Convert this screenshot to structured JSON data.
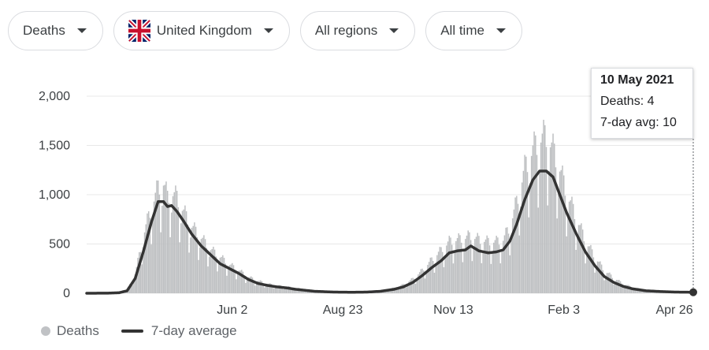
{
  "filters": {
    "metric": "Deaths",
    "country": "United Kingdom",
    "region": "All regions",
    "time": "All time"
  },
  "tooltip": {
    "date": "10 May 2021",
    "deaths_label": "Deaths: 4",
    "avg_label": "7-day avg: 10"
  },
  "legend": {
    "bars": "Deaths",
    "line": "7-day average"
  },
  "colors": {
    "bars": "#bdbfc1",
    "line": "#333333",
    "grid": "#e8e8e8"
  },
  "chart_data": {
    "type": "bar",
    "ylim": [
      0,
      2000
    ],
    "yticks": [
      {
        "value": 0,
        "label": "0"
      },
      {
        "value": 500,
        "label": "500"
      },
      {
        "value": 1000,
        "label": "1,000"
      },
      {
        "value": 1500,
        "label": "1,500"
      },
      {
        "value": 2000,
        "label": "2,000"
      }
    ],
    "xlim": [
      "2020-02-15",
      "2021-05-10"
    ],
    "xticks": [
      {
        "date": "2020-06-02",
        "label": "Jun 2"
      },
      {
        "date": "2020-08-23",
        "label": "Aug 23"
      },
      {
        "date": "2020-11-13",
        "label": "Nov 13"
      },
      {
        "date": "2021-02-03",
        "label": "Feb 3"
      },
      {
        "date": "2021-04-26",
        "label": "Apr 26"
      }
    ],
    "grid": true,
    "series": [
      {
        "name": "7-day average",
        "type": "line",
        "points": [
          [
            "2020-02-15",
            0
          ],
          [
            "2020-03-01",
            1
          ],
          [
            "2020-03-10",
            5
          ],
          [
            "2020-03-16",
            25
          ],
          [
            "2020-03-22",
            150
          ],
          [
            "2020-03-28",
            420
          ],
          [
            "2020-04-03",
            720
          ],
          [
            "2020-04-08",
            930
          ],
          [
            "2020-04-12",
            930
          ],
          [
            "2020-04-15",
            880
          ],
          [
            "2020-04-18",
            890
          ],
          [
            "2020-04-22",
            830
          ],
          [
            "2020-04-27",
            730
          ],
          [
            "2020-05-03",
            600
          ],
          [
            "2020-05-10",
            480
          ],
          [
            "2020-05-17",
            390
          ],
          [
            "2020-05-24",
            300
          ],
          [
            "2020-05-31",
            250
          ],
          [
            "2020-06-07",
            200
          ],
          [
            "2020-06-14",
            140
          ],
          [
            "2020-06-21",
            100
          ],
          [
            "2020-06-28",
            80
          ],
          [
            "2020-07-05",
            65
          ],
          [
            "2020-07-12",
            55
          ],
          [
            "2020-07-19",
            40
          ],
          [
            "2020-07-26",
            30
          ],
          [
            "2020-08-02",
            20
          ],
          [
            "2020-08-16",
            12
          ],
          [
            "2020-08-30",
            10
          ],
          [
            "2020-09-10",
            12
          ],
          [
            "2020-09-20",
            20
          ],
          [
            "2020-09-30",
            40
          ],
          [
            "2020-10-07",
            65
          ],
          [
            "2020-10-14",
            110
          ],
          [
            "2020-10-21",
            180
          ],
          [
            "2020-10-28",
            260
          ],
          [
            "2020-11-04",
            330
          ],
          [
            "2020-11-10",
            410
          ],
          [
            "2020-11-16",
            430
          ],
          [
            "2020-11-22",
            440
          ],
          [
            "2020-11-26",
            480
          ],
          [
            "2020-12-02",
            430
          ],
          [
            "2020-12-09",
            410
          ],
          [
            "2020-12-15",
            420
          ],
          [
            "2020-12-20",
            440
          ],
          [
            "2020-12-25",
            530
          ],
          [
            "2020-12-30",
            700
          ],
          [
            "2021-01-05",
            950
          ],
          [
            "2021-01-11",
            1150
          ],
          [
            "2021-01-16",
            1240
          ],
          [
            "2021-01-21",
            1240
          ],
          [
            "2021-01-26",
            1180
          ],
          [
            "2021-01-31",
            1000
          ],
          [
            "2021-02-05",
            820
          ],
          [
            "2021-02-12",
            610
          ],
          [
            "2021-02-19",
            420
          ],
          [
            "2021-02-26",
            280
          ],
          [
            "2021-03-05",
            170
          ],
          [
            "2021-03-12",
            110
          ],
          [
            "2021-03-19",
            70
          ],
          [
            "2021-03-26",
            45
          ],
          [
            "2021-04-05",
            25
          ],
          [
            "2021-04-15",
            18
          ],
          [
            "2021-04-26",
            12
          ],
          [
            "2021-05-10",
            10
          ]
        ]
      },
      {
        "name": "Deaths",
        "type": "bar",
        "daily_envelope": [
          [
            "2020-02-15",
            0
          ],
          [
            "2020-03-01",
            2
          ],
          [
            "2020-03-10",
            6
          ],
          [
            "2020-03-16",
            35
          ],
          [
            "2020-03-22",
            200
          ],
          [
            "2020-03-28",
            600
          ],
          [
            "2020-04-03",
            900
          ],
          [
            "2020-04-08",
            1100
          ],
          [
            "2020-04-12",
            1150
          ],
          [
            "2020-04-15",
            1000
          ],
          [
            "2020-04-18",
            1050
          ],
          [
            "2020-04-22",
            1000
          ],
          [
            "2020-04-27",
            850
          ],
          [
            "2020-05-03",
            700
          ],
          [
            "2020-05-10",
            580
          ],
          [
            "2020-05-17",
            460
          ],
          [
            "2020-05-24",
            380
          ],
          [
            "2020-05-31",
            300
          ],
          [
            "2020-06-07",
            240
          ],
          [
            "2020-06-14",
            170
          ],
          [
            "2020-06-21",
            130
          ],
          [
            "2020-06-28",
            100
          ],
          [
            "2020-07-05",
            80
          ],
          [
            "2020-07-12",
            70
          ],
          [
            "2020-07-19",
            55
          ],
          [
            "2020-07-26",
            40
          ],
          [
            "2020-08-02",
            25
          ],
          [
            "2020-08-16",
            16
          ],
          [
            "2020-08-30",
            14
          ],
          [
            "2020-09-10",
            16
          ],
          [
            "2020-09-20",
            28
          ],
          [
            "2020-09-30",
            55
          ],
          [
            "2020-10-07",
            90
          ],
          [
            "2020-10-14",
            150
          ],
          [
            "2020-10-21",
            240
          ],
          [
            "2020-10-28",
            350
          ],
          [
            "2020-11-04",
            450
          ],
          [
            "2020-11-10",
            540
          ],
          [
            "2020-11-16",
            560
          ],
          [
            "2020-11-22",
            580
          ],
          [
            "2020-11-26",
            600
          ],
          [
            "2020-12-02",
            560
          ],
          [
            "2020-12-09",
            540
          ],
          [
            "2020-12-15",
            540
          ],
          [
            "2020-12-20",
            560
          ],
          [
            "2020-12-25",
            700
          ],
          [
            "2020-12-30",
            950
          ],
          [
            "2021-01-05",
            1300
          ],
          [
            "2021-01-11",
            1500
          ],
          [
            "2021-01-16",
            1600
          ],
          [
            "2021-01-21",
            1650
          ],
          [
            "2021-01-26",
            1500
          ],
          [
            "2021-01-31",
            1300
          ],
          [
            "2021-02-05",
            1050
          ],
          [
            "2021-02-12",
            800
          ],
          [
            "2021-02-19",
            550
          ],
          [
            "2021-02-26",
            380
          ],
          [
            "2021-03-05",
            240
          ],
          [
            "2021-03-12",
            160
          ],
          [
            "2021-03-19",
            100
          ],
          [
            "2021-03-26",
            60
          ],
          [
            "2021-04-05",
            35
          ],
          [
            "2021-04-15",
            25
          ],
          [
            "2021-04-26",
            18
          ],
          [
            "2021-05-10",
            4
          ]
        ]
      }
    ],
    "highlight": {
      "date": "2021-05-10",
      "deaths": 4,
      "avg": 10
    }
  }
}
